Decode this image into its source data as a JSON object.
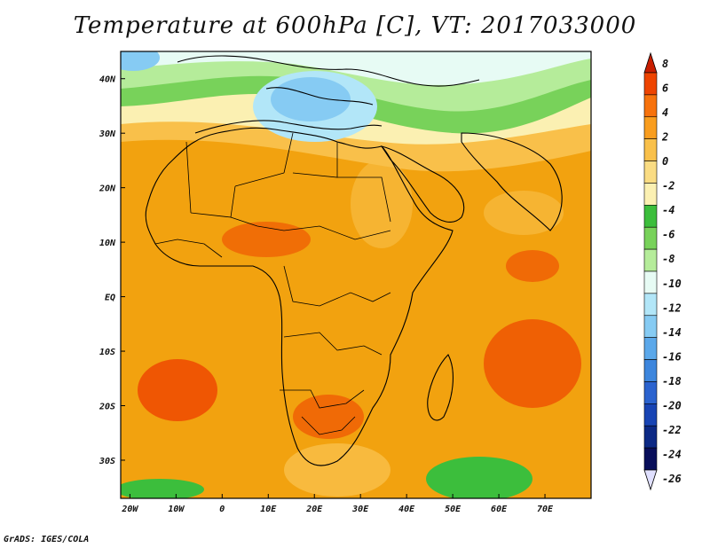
{
  "title": "Temperature at 600hPa [C], VT: 2017033000",
  "credit": "GrADS: IGES/COLA",
  "colors": {
    "ocean_sea": "#f2a20f",
    "frame": "#000000"
  },
  "axes": {
    "lat_labels": [
      "40N",
      "30N",
      "20N",
      "10N",
      "EQ",
      "10S",
      "20S",
      "30S"
    ],
    "lat_values": [
      40,
      30,
      20,
      10,
      0,
      -10,
      -20,
      -30
    ],
    "lon_labels": [
      "20W",
      "10W",
      "0",
      "10E",
      "20E",
      "30E",
      "40E",
      "50E",
      "60E",
      "70E"
    ],
    "lon_values": [
      -20,
      -10,
      0,
      10,
      20,
      30,
      40,
      50,
      60,
      70
    ],
    "lon_range": [
      -22,
      80
    ],
    "lat_range": [
      -37,
      45
    ]
  },
  "colorbar": {
    "levels": [
      "8",
      "6",
      "4",
      "2",
      "0",
      "-2",
      "-4",
      "-6",
      "-8",
      "-10",
      "-12",
      "-14",
      "-16",
      "-18",
      "-20",
      "-22",
      "-24",
      "-26"
    ],
    "colors": [
      "#c81e00",
      "#ee4400",
      "#f7720c",
      "#f99d1e",
      "#f9c04a",
      "#fadc83",
      "#fbf0b2",
      "#3cbe3c",
      "#78d25a",
      "#b5ec9a",
      "#e7fbf4",
      "#b2e6f8",
      "#86cbf3",
      "#5ba8ea",
      "#3d86dd",
      "#2b63cf",
      "#1844b4",
      "#0c2985",
      "#080e5a",
      "#e0e0ff"
    ]
  }
}
